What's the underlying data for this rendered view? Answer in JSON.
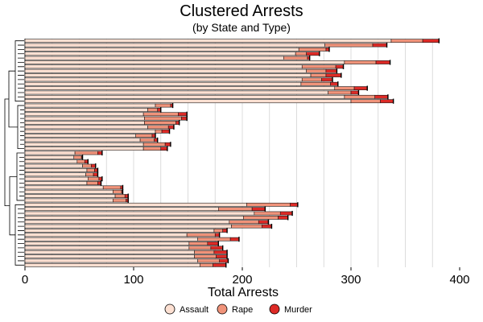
{
  "chart_data": {
    "type": "bar",
    "orientation": "horizontal",
    "stacked": true,
    "title": "Clustered Arrests",
    "subtitle": "(by State and Type)",
    "xlabel": "Total Arrests",
    "xlim": [
      0,
      400
    ],
    "xticks": [
      0,
      100,
      200,
      300,
      400
    ],
    "xtick_labels": [
      "0",
      "100",
      "200",
      "300",
      "400"
    ],
    "grid": "vertical",
    "legend": "bottom",
    "dendrogram": true,
    "series": [
      {
        "name": "Assault",
        "color": "#FDE0D2",
        "values": [
          337,
          276,
          252,
          249,
          238,
          294,
          255,
          259,
          263,
          255,
          254,
          285,
          279,
          294,
          300,
          120,
          113,
          109,
          110,
          110,
          113,
          120,
          102,
          106,
          109,
          109,
          46,
          45,
          48,
          53,
          57,
          56,
          58,
          57,
          72,
          81,
          83,
          81,
          204,
          178,
          211,
          201,
          188,
          190,
          174,
          149,
          159,
          151,
          151,
          156,
          156,
          159,
          161
        ]
      },
      {
        "name": "Rape",
        "color": "#F0937A",
        "values": [
          29,
          44,
          25,
          10,
          22,
          29,
          31,
          18,
          14,
          18,
          27,
          18,
          21,
          28,
          27,
          14,
          9,
          32,
          34,
          29,
          19,
          6,
          15,
          13,
          20,
          16,
          21,
          7,
          7,
          8,
          7,
          7,
          10,
          10,
          16,
          8,
          9,
          12,
          40,
          31,
          24,
          32,
          27,
          28,
          8,
          26,
          30,
          17,
          20,
          18,
          20,
          20,
          12
        ]
      },
      {
        "name": "Murder",
        "color": "#DD2A26",
        "values": [
          15,
          13,
          3,
          12,
          2,
          13,
          7,
          10,
          14,
          10,
          7,
          12,
          7,
          12,
          12,
          2,
          3,
          8,
          5,
          3,
          5,
          7,
          3,
          3,
          5,
          6,
          4,
          1,
          3,
          4,
          3,
          4,
          3,
          3,
          2,
          1,
          3,
          2,
          7,
          12,
          11,
          9,
          9,
          9,
          4,
          4,
          8,
          10,
          11,
          12,
          10,
          8,
          12
        ]
      }
    ]
  },
  "legend": {
    "items": [
      {
        "label": "Assault",
        "icon": "circle-icon",
        "color": "#FDE0D2"
      },
      {
        "label": "Rape",
        "icon": "circle-icon",
        "color": "#F0937A"
      },
      {
        "label": "Murder",
        "icon": "circle-icon",
        "color": "#DD2A26"
      }
    ]
  }
}
